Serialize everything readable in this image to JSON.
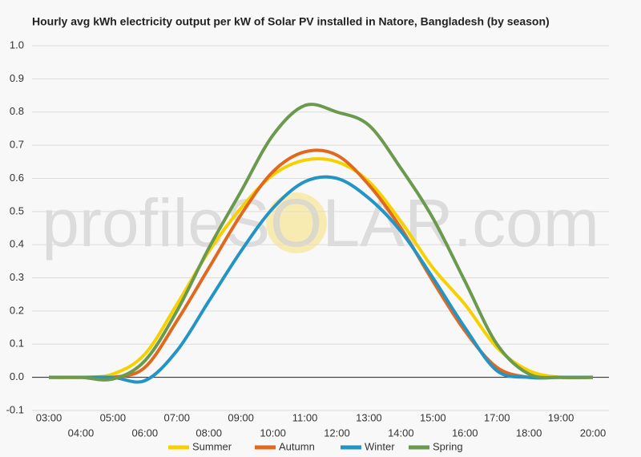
{
  "chart_data": {
    "type": "line",
    "title": "Hourly avg kWh electricity output per kW of Solar PV installed in Natore, Bangladesh (by season)",
    "watermark": "profileSOLAR.com",
    "categories": [
      "03:00",
      "04:00",
      "05:00",
      "06:00",
      "07:00",
      "08:00",
      "09:00",
      "10:00",
      "11:00",
      "12:00",
      "13:00",
      "14:00",
      "15:00",
      "16:00",
      "17:00",
      "18:00",
      "19:00",
      "20:00"
    ],
    "series": [
      {
        "name": "Summer",
        "color": "#f7d000",
        "values": [
          0,
          0,
          0.01,
          0.07,
          0.22,
          0.38,
          0.51,
          0.61,
          0.655,
          0.65,
          0.59,
          0.47,
          0.33,
          0.22,
          0.09,
          0.02,
          0,
          0
        ]
      },
      {
        "name": "Autumn",
        "color": "#e0691f",
        "values": [
          0,
          0,
          0,
          0.03,
          0.17,
          0.33,
          0.49,
          0.62,
          0.68,
          0.67,
          0.58,
          0.45,
          0.29,
          0.14,
          0.03,
          0,
          0,
          0
        ]
      },
      {
        "name": "Winter",
        "color": "#2394c4",
        "values": [
          0,
          0,
          0,
          -0.01,
          0.08,
          0.23,
          0.38,
          0.51,
          0.59,
          0.6,
          0.54,
          0.44,
          0.3,
          0.15,
          0.02,
          0,
          0,
          0
        ]
      },
      {
        "name": "Spring",
        "color": "#6b9a4f",
        "values": [
          0,
          0,
          -0.005,
          0.05,
          0.2,
          0.39,
          0.56,
          0.73,
          0.82,
          0.8,
          0.76,
          0.63,
          0.48,
          0.29,
          0.1,
          0.01,
          0,
          0
        ]
      }
    ],
    "ylim": [
      -0.1,
      1.0
    ],
    "yticks": [
      {
        "value": 1.0,
        "label": "1.0"
      },
      0.9,
      0.8,
      0.7,
      0.6,
      0.5,
      0.4,
      0.3,
      0.2,
      0.1,
      {
        "value": 0.0,
        "label": "0.0"
      },
      -0.1
    ],
    "grid": true,
    "legend": "bottom"
  }
}
